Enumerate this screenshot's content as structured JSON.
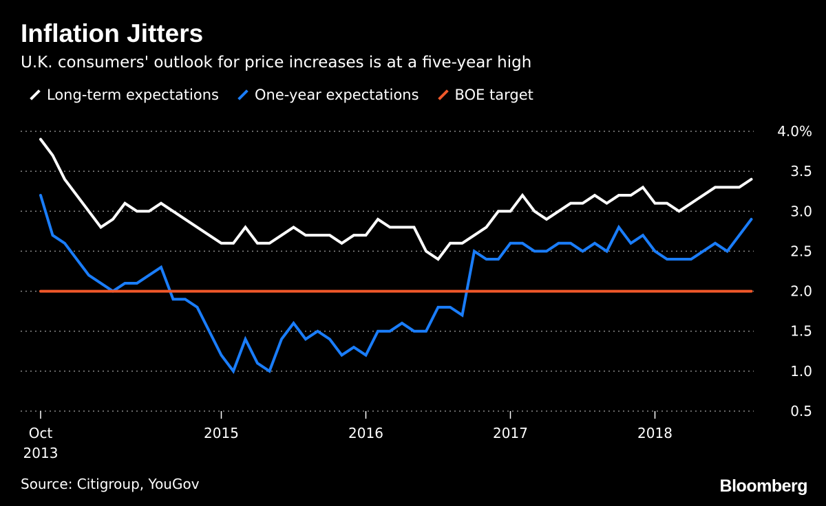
{
  "chart_data": {
    "type": "line",
    "title": "Inflation Jitters",
    "subtitle": "U.K. consumers' outlook for price increases is at a five-year high",
    "x_start": "2013-10",
    "x_frequency": "monthly",
    "x_ticks": [
      {
        "month": "2013-10",
        "label": "Oct",
        "label2": "2013"
      },
      {
        "month": "2015-01",
        "label": "2015"
      },
      {
        "month": "2016-01",
        "label": "2016"
      },
      {
        "month": "2017-01",
        "label": "2017"
      },
      {
        "month": "2018-01",
        "label": "2018"
      }
    ],
    "y_ticks": [
      {
        "value": 4.0,
        "label": "4.0%"
      },
      {
        "value": 3.5,
        "label": "3.5"
      },
      {
        "value": 3.0,
        "label": "3.0"
      },
      {
        "value": 2.5,
        "label": "2.5"
      },
      {
        "value": 2.0,
        "label": "2.0"
      },
      {
        "value": 1.5,
        "label": "1.5"
      },
      {
        "value": 1.0,
        "label": "1.0"
      },
      {
        "value": 0.5,
        "label": "0.5"
      }
    ],
    "ylim": [
      0.5,
      4.0
    ],
    "grid": "horizontal dotted",
    "legend_position": "top-left",
    "series": [
      {
        "name": "Long-term expectations",
        "color": "#ffffff",
        "values": [
          3.9,
          3.7,
          3.4,
          3.2,
          3.0,
          2.8,
          2.9,
          3.1,
          3.0,
          3.0,
          3.1,
          3.0,
          2.9,
          2.8,
          2.7,
          2.6,
          2.6,
          2.8,
          2.6,
          2.6,
          2.7,
          2.8,
          2.7,
          2.7,
          2.7,
          2.6,
          2.7,
          2.7,
          2.9,
          2.8,
          2.8,
          2.8,
          2.5,
          2.4,
          2.6,
          2.6,
          2.7,
          2.8,
          3.0,
          3.0,
          3.2,
          3.0,
          2.9,
          3.0,
          3.1,
          3.1,
          3.2,
          3.1,
          3.2,
          3.2,
          3.3,
          3.1,
          3.1,
          3.0,
          3.1,
          3.2,
          3.3,
          3.3,
          3.3,
          3.4
        ]
      },
      {
        "name": "One-year expectations",
        "color": "#1a7dfa",
        "values": [
          3.2,
          2.7,
          2.6,
          2.4,
          2.2,
          2.1,
          2.0,
          2.1,
          2.1,
          2.2,
          2.3,
          1.9,
          1.9,
          1.8,
          1.5,
          1.2,
          1.0,
          1.4,
          1.1,
          1.0,
          1.4,
          1.6,
          1.4,
          1.5,
          1.4,
          1.2,
          1.3,
          1.2,
          1.5,
          1.5,
          1.6,
          1.5,
          1.5,
          1.8,
          1.8,
          1.7,
          2.5,
          2.4,
          2.4,
          2.6,
          2.6,
          2.5,
          2.5,
          2.6,
          2.6,
          2.5,
          2.6,
          2.5,
          2.8,
          2.6,
          2.7,
          2.5,
          2.4,
          2.4,
          2.4,
          2.5,
          2.6,
          2.5,
          2.7,
          2.9
        ]
      },
      {
        "name": "BOE target",
        "color": "#f0582a",
        "constant": 2.0
      }
    ],
    "source": "Source: Citigroup, YouGov"
  },
  "branding": {
    "logo": "Bloomberg"
  }
}
